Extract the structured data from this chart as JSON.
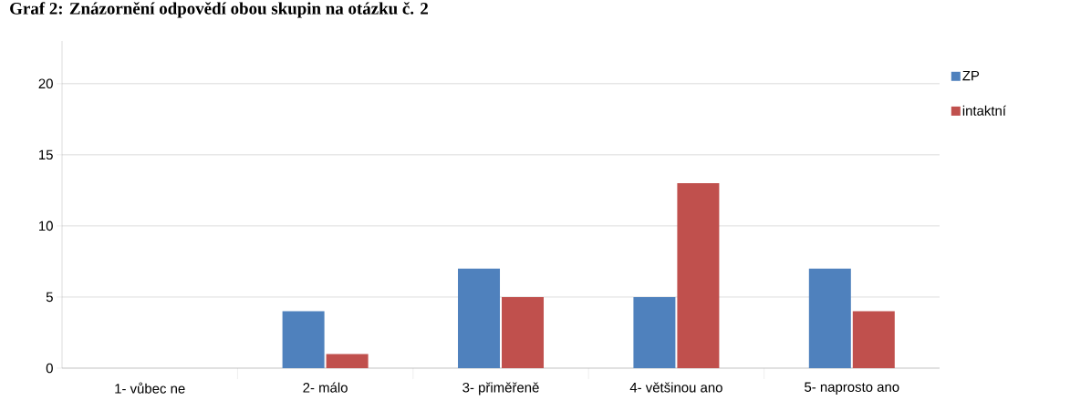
{
  "chart_data": {
    "type": "bar",
    "title": "Graf 2: Znázornění odpovědí obou skupin na otázku č. 2",
    "categories": [
      "1- vůbec ne",
      "2- málo",
      "3- přiměřeně",
      "4- většinou ano",
      "5- naprosto ano"
    ],
    "series": [
      {
        "name": "ZP",
        "color": "#4f81bd",
        "values": [
          0,
          4,
          7,
          5,
          7
        ]
      },
      {
        "name": "intaktní",
        "color": "#c0504d",
        "values": [
          0,
          1,
          5,
          13,
          4
        ]
      }
    ],
    "ylim": [
      0,
      23
    ],
    "yticks": [
      0,
      5,
      10,
      15,
      20
    ],
    "grid": "y",
    "legend": "right"
  }
}
